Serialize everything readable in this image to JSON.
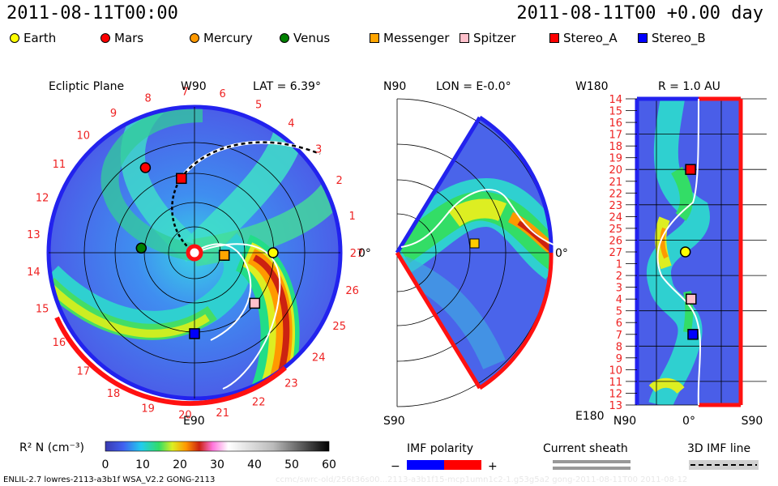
{
  "header": {
    "date": "2011-08-11T00:00",
    "model_time": "2011-08-11T00 +0.00 day"
  },
  "legend": [
    {
      "label": "Earth",
      "color": "#ffff00",
      "shape": "circle"
    },
    {
      "label": "Mars",
      "color": "#ff0000",
      "shape": "circle"
    },
    {
      "label": "Mercury",
      "color": "#ff9900",
      "shape": "circle"
    },
    {
      "label": "Venus",
      "color": "#008000",
      "shape": "circle"
    },
    {
      "label": "Messenger",
      "color": "#ffa500",
      "shape": "square"
    },
    {
      "label": "Spitzer",
      "color": "#ffc0cb",
      "shape": "square"
    },
    {
      "label": "Stereo_A",
      "color": "#ff0000",
      "shape": "square"
    },
    {
      "label": "Stereo_B",
      "color": "#0000ff",
      "shape": "square"
    }
  ],
  "panels": {
    "ecliptic": {
      "title": "Ecliptic Plane",
      "lat": "LAT = 6.39°",
      "top_label": "W90",
      "bottom_label": "E90",
      "right_label": "0°"
    },
    "meridional": {
      "top_label": "N90",
      "lon": "LON = E-0.0°",
      "bottom_label": "S90",
      "right_label": "0°"
    },
    "synoptic": {
      "top_label": "W180",
      "r": "R = 1.0 AU",
      "bottom_label": "E180",
      "x_ticks": [
        "N90",
        "0°",
        "S90"
      ]
    }
  },
  "colorbar": {
    "label": "R² N (cm⁻³)",
    "ticks": [
      "0",
      "10",
      "20",
      "30",
      "40",
      "50",
      "60"
    ]
  },
  "imf": {
    "title": "IMF polarity",
    "minus": "−",
    "plus": "+"
  },
  "sheath": {
    "title": "Current sheath"
  },
  "imf3d": {
    "title": "3D IMF line"
  },
  "footer": "ENLIL-2.7 lowres-2113-a3b1f WSA_V2.2 GONG-2113",
  "watermark": "ccmc/swrc-old/256t36s00...2113-a3b1f15-mcp1umn1c2-1.g53g5a2 gong-2011-08-11T00   2011-08-12",
  "chart_data": [
    {
      "type": "heatmap",
      "panel": "ecliptic",
      "title": "Ecliptic Plane",
      "carrington_labels": [
        "27",
        "1",
        "2",
        "3",
        "4",
        "5",
        "6",
        "7",
        "8",
        "9",
        "10",
        "11",
        "12",
        "13",
        "14",
        "15",
        "16",
        "17",
        "18",
        "19",
        "20",
        "21",
        "22",
        "23",
        "24",
        "25",
        "26"
      ],
      "bodies": [
        {
          "name": "Earth",
          "r_au": 1.0,
          "lon_deg": 0
        },
        {
          "name": "Mars",
          "r_au": 1.25,
          "lon_deg": 120
        },
        {
          "name": "Mercury",
          "r_au": 0.38,
          "lon_deg": -5
        },
        {
          "name": "Venus",
          "r_au": 0.68,
          "lon_deg": 175
        },
        {
          "name": "Messenger",
          "r_au": 0.38,
          "lon_deg": -5
        },
        {
          "name": "Spitzer",
          "r_au": 1.0,
          "lon_deg": -40
        },
        {
          "name": "Stereo_A",
          "r_au": 0.96,
          "lon_deg": 100
        },
        {
          "name": "Stereo_B",
          "r_au": 1.03,
          "lon_deg": -90
        }
      ]
    },
    {
      "type": "heatmap",
      "panel": "meridional",
      "bodies": [
        {
          "name": "Earth",
          "r_au": 1.0,
          "lat_deg": 6
        }
      ]
    },
    {
      "type": "heatmap",
      "panel": "synoptic",
      "title": "R = 1.0 AU",
      "y_ticks": [
        "14",
        "15",
        "16",
        "17",
        "18",
        "19",
        "20",
        "21",
        "22",
        "23",
        "24",
        "25",
        "26",
        "27",
        "1",
        "2",
        "3",
        "4",
        "5",
        "6",
        "7",
        "8",
        "9",
        "10",
        "11",
        "12",
        "13"
      ],
      "x_ticks": [
        "N90",
        "0°",
        "S90"
      ],
      "bodies": [
        {
          "name": "Stereo_A",
          "lat_deg": -3,
          "carrington": 20
        },
        {
          "name": "Earth",
          "lat_deg": 6,
          "carrington": 27
        },
        {
          "name": "Spitzer",
          "lat_deg": -4,
          "carrington": 4
        },
        {
          "name": "Stereo_B",
          "lat_deg": -7,
          "carrington": 7
        }
      ]
    }
  ]
}
